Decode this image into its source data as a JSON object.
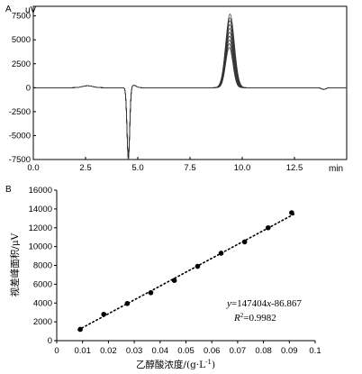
{
  "chart_data": [
    {
      "type": "line",
      "panel": "A",
      "y_unit": "uV",
      "x_unit": "min",
      "xlim": [
        0,
        15
      ],
      "ylim": [
        -7500,
        8500
      ],
      "x_ticks": [
        "0.0",
        "2.5",
        "5.0",
        "7.5",
        "10.0",
        "12.5"
      ],
      "y_ticks": [
        "7500",
        "5000",
        "2500",
        "0",
        "-2500",
        "-5000",
        "-7500"
      ],
      "x_tick_values": [
        0,
        2.5,
        5,
        7.5,
        10,
        12.5
      ],
      "y_tick_values": [
        7500,
        5000,
        2500,
        0,
        -2500,
        -5000,
        -7500
      ],
      "overlay_count": 10,
      "peak_x": 9.4,
      "peak_heights": [
        4200,
        4600,
        5000,
        5400,
        5800,
        6200,
        6600,
        7000,
        7300,
        7700
      ],
      "dip_x": 4.55,
      "dip_min": -7600,
      "small_bump_x": 2.6,
      "small_bump_height": 200
    },
    {
      "type": "scatter",
      "panel": "B",
      "xlabel": "乙醇酸浓度/(g·L",
      "xlabel_sup": "-1",
      "xlabel_end": ")",
      "ylabel": "视差峰面积/μV",
      "xlim": [
        0,
        0.1
      ],
      "ylim": [
        0,
        16000
      ],
      "x_ticks": [
        "0",
        "0.01",
        "0.02",
        "0.03",
        "0.04",
        "0.05",
        "0.06",
        "0.07",
        "0.08",
        "0.09",
        "0.1"
      ],
      "y_ticks": [
        "16000",
        "14000",
        "12000",
        "10000",
        "8000",
        "6000",
        "4000",
        "2000",
        "0"
      ],
      "x_tick_values": [
        0,
        0.01,
        0.02,
        0.03,
        0.04,
        0.05,
        0.06,
        0.07,
        0.08,
        0.09,
        0.1
      ],
      "y_tick_values": [
        16000,
        14000,
        12000,
        10000,
        8000,
        6000,
        4000,
        2000,
        0
      ],
      "x": [
        0.0091,
        0.0182,
        0.0273,
        0.0364,
        0.0455,
        0.0545,
        0.0636,
        0.0727,
        0.0818,
        0.0909
      ],
      "y": [
        1200,
        2800,
        3950,
        5100,
        6400,
        7900,
        9300,
        10500,
        12000,
        13600
      ],
      "fit": {
        "slope": 147404,
        "intercept": -86.867,
        "r2": 0.9982
      },
      "equation_y": "y",
      "equation_rest": "=147404",
      "equation_x": "x",
      "equation_tail": "-86.867",
      "r2_r": "R",
      "r2_sup": "2",
      "r2_value": "=0.9982"
    }
  ]
}
